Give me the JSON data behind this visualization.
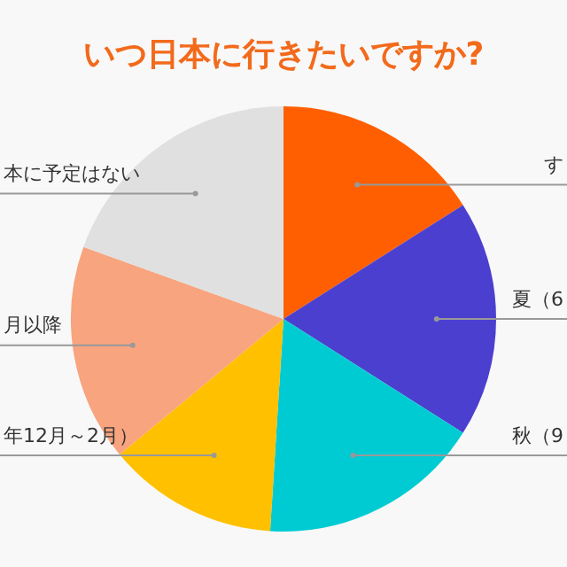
{
  "chart_data": {
    "type": "pie",
    "title": "いつ日本に行きたいですか?",
    "categories": [
      "す",
      "夏（6",
      "秋（9",
      "年12月～2月）",
      "月以降",
      "本に予定はない"
    ],
    "values": [
      16,
      18,
      17,
      13,
      16.5,
      19.5
    ],
    "colors": [
      "#ff5f00",
      "#4b3fcf",
      "#00cbd3",
      "#ffc000",
      "#f7a47f",
      "#e0e0e0"
    ],
    "legend": false
  }
}
